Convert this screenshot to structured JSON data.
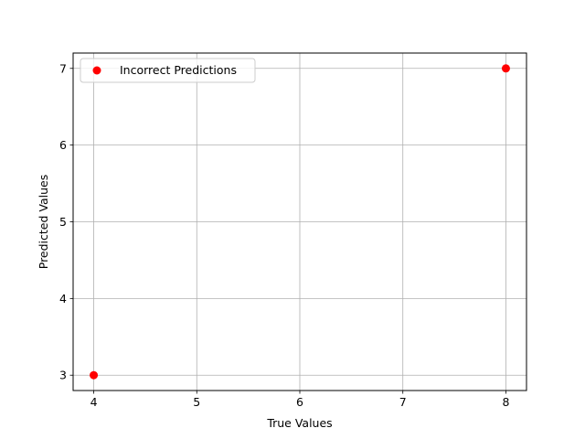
{
  "chart_data": {
    "type": "scatter",
    "title": "",
    "xlabel": "True Values",
    "ylabel": "Predicted Values",
    "xlim": [
      3.8,
      8.2
    ],
    "ylim": [
      2.8,
      7.2
    ],
    "xticks": [
      4,
      5,
      6,
      7,
      8
    ],
    "yticks": [
      3,
      4,
      5,
      6,
      7
    ],
    "grid": true,
    "legend_position": "upper-left",
    "series": [
      {
        "name": "Incorrect Predictions",
        "color": "#ff0000",
        "points": [
          {
            "x": 4,
            "y": 3
          },
          {
            "x": 8,
            "y": 7
          }
        ]
      }
    ]
  }
}
